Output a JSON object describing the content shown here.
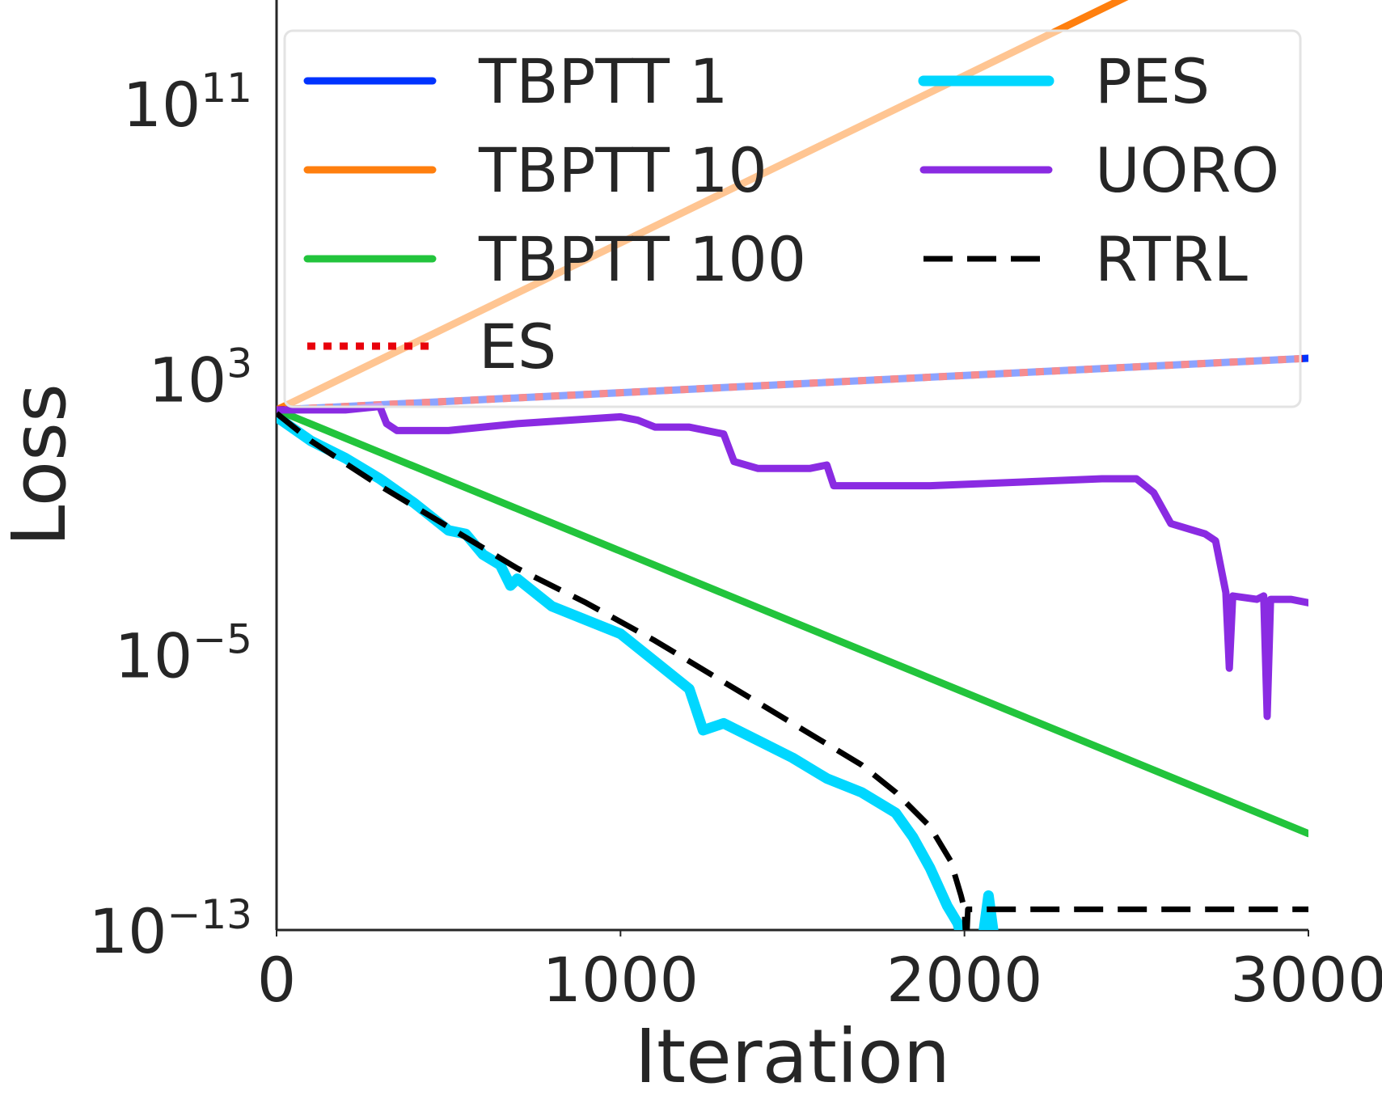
{
  "chart_data": {
    "type": "line",
    "xlabel": "Iteration",
    "ylabel": "Loss",
    "xlim": [
      0,
      3000
    ],
    "ylim_log10": [
      -13,
      14
    ],
    "yscale": "log",
    "grid": false,
    "legend_placement": "top",
    "xticks": [
      {
        "value": 0,
        "label": "0"
      },
      {
        "value": 1000,
        "label": "1000"
      },
      {
        "value": 2000,
        "label": "2000"
      },
      {
        "value": 3000,
        "label": "3000"
      }
    ],
    "yticks": [
      {
        "exp": 11,
        "base": "10",
        "sup": "11"
      },
      {
        "exp": 3,
        "base": "10",
        "sup": "3"
      },
      {
        "exp": -5,
        "base": "10",
        "sup": "−5"
      },
      {
        "exp": -13,
        "base": "10",
        "sup": "−13"
      }
    ],
    "series": [
      {
        "name": "TBPTT 1",
        "color": "#0033ff",
        "dash": "solid",
        "width": 9,
        "points": [
          [
            0,
            2.1
          ],
          [
            3000,
            3.6
          ]
        ]
      },
      {
        "name": "TBPTT 10",
        "color": "#ff7f0e",
        "dash": "solid",
        "width": 9,
        "fade_above_log10": 4.2,
        "points": [
          [
            0,
            2.1
          ],
          [
            2700,
            15.2
          ]
        ]
      },
      {
        "name": "TBPTT 100",
        "color": "#22c43c",
        "dash": "solid",
        "width": 9,
        "points": [
          [
            0,
            2.1
          ],
          [
            3000,
            -10.2
          ]
        ]
      },
      {
        "name": "ES",
        "color": "#e8000b",
        "dash": "dotted",
        "width": 9,
        "points": [
          [
            0,
            2.1
          ],
          [
            3000,
            3.6
          ]
        ]
      },
      {
        "name": "PES",
        "color": "#00d7ff",
        "dash": "solid",
        "width": 13,
        "points": [
          [
            0,
            1.9
          ],
          [
            100,
            1.2
          ],
          [
            200,
            0.7
          ],
          [
            300,
            0.1
          ],
          [
            400,
            -0.6
          ],
          [
            500,
            -1.4
          ],
          [
            550,
            -1.5
          ],
          [
            600,
            -2.1
          ],
          [
            650,
            -2.4
          ],
          [
            680,
            -3.0
          ],
          [
            700,
            -2.8
          ],
          [
            800,
            -3.6
          ],
          [
            900,
            -4.0
          ],
          [
            1000,
            -4.4
          ],
          [
            1100,
            -5.2
          ],
          [
            1200,
            -6.0
          ],
          [
            1240,
            -7.2
          ],
          [
            1300,
            -7.0
          ],
          [
            1400,
            -7.5
          ],
          [
            1500,
            -8.0
          ],
          [
            1600,
            -8.6
          ],
          [
            1700,
            -9.0
          ],
          [
            1800,
            -9.6
          ],
          [
            1850,
            -10.3
          ],
          [
            1900,
            -11.2
          ],
          [
            1950,
            -12.3
          ],
          [
            1980,
            -12.8
          ],
          [
            2000,
            -13.5
          ],
          [
            2050,
            -13.5
          ],
          [
            2070,
            -12.0
          ],
          [
            2090,
            -13.5
          ],
          [
            2110,
            -13.5
          ]
        ]
      },
      {
        "name": "UORO",
        "color": "#8a2be2",
        "dash": "solid",
        "width": 9,
        "points": [
          [
            0,
            2.1
          ],
          [
            200,
            2.1
          ],
          [
            300,
            2.2
          ],
          [
            320,
            1.7
          ],
          [
            350,
            1.5
          ],
          [
            500,
            1.5
          ],
          [
            700,
            1.7
          ],
          [
            1000,
            1.9
          ],
          [
            1050,
            1.8
          ],
          [
            1100,
            1.6
          ],
          [
            1200,
            1.6
          ],
          [
            1300,
            1.4
          ],
          [
            1330,
            0.6
          ],
          [
            1400,
            0.4
          ],
          [
            1550,
            0.4
          ],
          [
            1600,
            0.5
          ],
          [
            1620,
            -0.1
          ],
          [
            1900,
            -0.1
          ],
          [
            2400,
            0.1
          ],
          [
            2500,
            0.1
          ],
          [
            2550,
            -0.3
          ],
          [
            2600,
            -1.2
          ],
          [
            2700,
            -1.5
          ],
          [
            2730,
            -1.7
          ],
          [
            2760,
            -3.2
          ],
          [
            2770,
            -5.4
          ],
          [
            2780,
            -3.3
          ],
          [
            2850,
            -3.4
          ],
          [
            2870,
            -3.3
          ],
          [
            2880,
            -6.8
          ],
          [
            2890,
            -3.4
          ],
          [
            2950,
            -3.4
          ],
          [
            3000,
            -3.5
          ]
        ]
      },
      {
        "name": "RTRL",
        "color": "#000000",
        "dash": "dashed",
        "width": 7,
        "points": [
          [
            0,
            2.0
          ],
          [
            100,
            1.2
          ],
          [
            300,
            -0.1
          ],
          [
            500,
            -1.3
          ],
          [
            700,
            -2.5
          ],
          [
            900,
            -3.5
          ],
          [
            1100,
            -4.6
          ],
          [
            1300,
            -5.8
          ],
          [
            1500,
            -7.0
          ],
          [
            1700,
            -8.2
          ],
          [
            1800,
            -9.0
          ],
          [
            1900,
            -10.0
          ],
          [
            1960,
            -11.0
          ],
          [
            1990,
            -12.0
          ],
          [
            2000,
            -12.4
          ],
          [
            2005,
            -13.5
          ],
          [
            2010,
            -12.4
          ],
          [
            3000,
            -12.4
          ]
        ]
      }
    ]
  }
}
